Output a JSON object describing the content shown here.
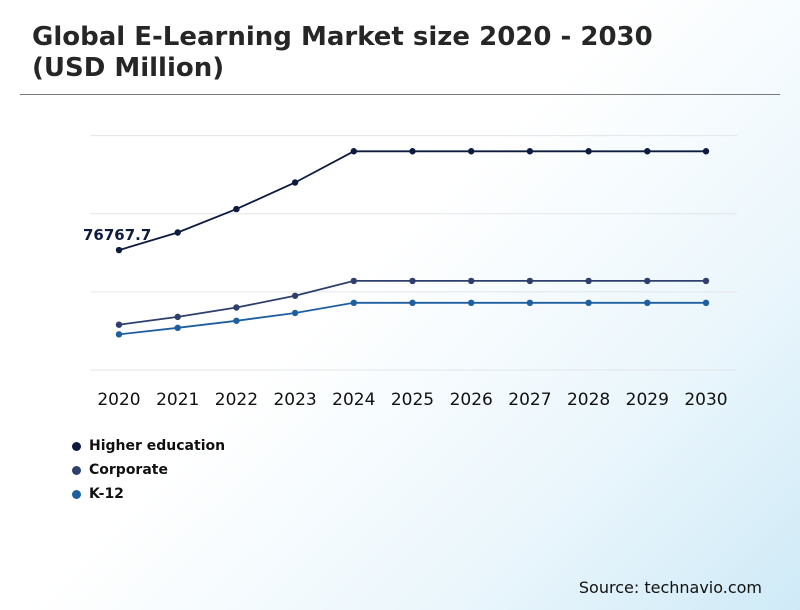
{
  "header": {
    "title": "Global E-Learning Market size 2020 - 2030 (USD Million)"
  },
  "source": "Source: technavio.com",
  "chart_data": {
    "type": "line",
    "title": "Global E-Learning Market size 2020 - 2030 (USD Million)",
    "categories": [
      "2020",
      "2021",
      "2022",
      "2023",
      "2024",
      "2025",
      "2026",
      "2027",
      "2028",
      "2029",
      "2030"
    ],
    "xlabel": "",
    "ylabel": "",
    "ylim": [
      0,
      160000
    ],
    "grid": true,
    "legend_position": "bottom-left",
    "annotations": [
      {
        "series": "Higher education",
        "category": "2020",
        "label": "76767.7"
      }
    ],
    "series": [
      {
        "name": "Higher education",
        "color": "#0d1b3e",
        "values": [
          76767.7,
          88000,
          103000,
          120000,
          140000,
          140000,
          140000,
          140000,
          140000,
          140000,
          140000
        ]
      },
      {
        "name": "Corporate",
        "color": "#2e3f6e",
        "values": [
          29000,
          34000,
          40000,
          47500,
          57000,
          57000,
          57000,
          57000,
          57000,
          57000,
          57000
        ]
      },
      {
        "name": "K-12",
        "color": "#1f5fa0",
        "values": [
          22800,
          27000,
          31500,
          36500,
          43000,
          43000,
          43000,
          43000,
          43000,
          43000,
          43000
        ]
      }
    ]
  }
}
